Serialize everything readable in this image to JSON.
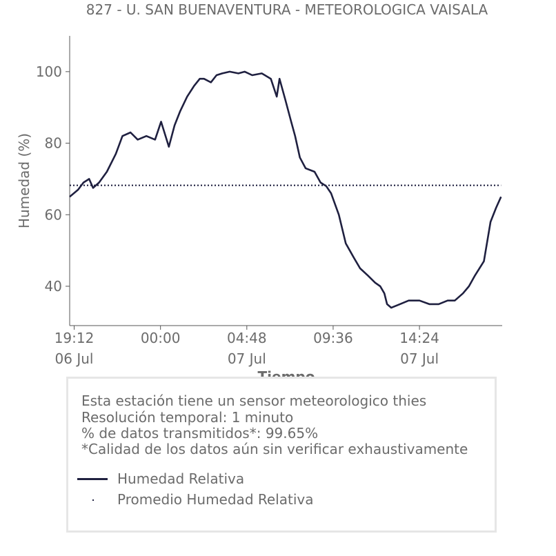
{
  "colors": {
    "series": "#1f2040",
    "text": "#6b6b6b",
    "axis": "#555555",
    "legend_border": "#e6e6e6"
  },
  "chart_data": {
    "type": "line",
    "title": "827 - U. SAN BUENAVENTURA - METEOROLOGICA VAISALA",
    "xlabel": "Tiempo",
    "ylabel": "Humedad (%)",
    "ylim": [
      29,
      110
    ],
    "yticks": [
      40,
      60,
      80,
      100
    ],
    "xlim": [
      "2024-07-06T18:57",
      "2024-07-07T19:00"
    ],
    "xticks": [
      {
        "t": "2024-07-06T19:12",
        "time": "19:12",
        "date": "06 Jul"
      },
      {
        "t": "2024-07-07T00:00",
        "time": "00:00",
        "date": ""
      },
      {
        "t": "2024-07-07T04:48",
        "time": "04:48",
        "date": "07 Jul"
      },
      {
        "t": "2024-07-07T09:36",
        "time": "09:36",
        "date": ""
      },
      {
        "t": "2024-07-07T14:24",
        "time": "14:24",
        "date": "07 Jul"
      }
    ],
    "grid": false,
    "legend_position": "below",
    "series": [
      {
        "name": "Humedad Relativa",
        "style": "solid",
        "x": [
          "2024-07-06T18:57",
          "2024-07-06T19:25",
          "2024-07-06T19:43",
          "2024-07-06T20:02",
          "2024-07-06T20:15",
          "2024-07-06T20:35",
          "2024-07-06T21:01",
          "2024-07-06T21:31",
          "2024-07-06T21:53",
          "2024-07-06T22:20",
          "2024-07-06T22:44",
          "2024-07-06T23:13",
          "2024-07-06T23:42",
          "2024-07-07T00:02",
          "2024-07-07T00:28",
          "2024-07-07T00:47",
          "2024-07-07T01:06",
          "2024-07-07T01:29",
          "2024-07-07T01:52",
          "2024-07-07T02:11",
          "2024-07-07T02:25",
          "2024-07-07T02:48",
          "2024-07-07T03:07",
          "2024-07-07T03:26",
          "2024-07-07T03:51",
          "2024-07-07T04:20",
          "2024-07-07T04:41",
          "2024-07-07T05:06",
          "2024-07-07T05:38",
          "2024-07-07T06:08",
          "2024-07-07T06:28",
          "2024-07-07T06:37",
          "2024-07-07T06:57",
          "2024-07-07T07:16",
          "2024-07-07T07:29",
          "2024-07-07T07:45",
          "2024-07-07T08:04",
          "2024-07-07T08:34",
          "2024-07-07T08:54",
          "2024-07-07T09:13",
          "2024-07-07T09:29",
          "2024-07-07T09:55",
          "2024-07-07T10:18",
          "2024-07-07T10:45",
          "2024-07-07T11:06",
          "2024-07-07T11:32",
          "2024-07-07T11:56",
          "2024-07-07T12:13",
          "2024-07-07T12:27",
          "2024-07-07T12:36",
          "2024-07-07T12:50",
          "2024-07-07T13:19",
          "2024-07-07T13:48",
          "2024-07-07T14:24",
          "2024-07-07T14:57",
          "2024-07-07T15:28",
          "2024-07-07T15:58",
          "2024-07-07T16:22",
          "2024-07-07T16:49",
          "2024-07-07T17:09",
          "2024-07-07T17:29",
          "2024-07-07T17:59",
          "2024-07-07T18:21",
          "2024-07-07T18:40",
          "2024-07-07T18:56"
        ],
        "values": [
          65,
          67,
          69,
          70,
          67.5,
          69,
          72,
          77,
          82,
          83,
          81,
          82,
          81,
          86,
          79,
          85,
          89,
          93,
          96,
          98,
          98,
          97,
          99,
          99.5,
          100,
          99.5,
          100,
          99,
          99.5,
          98,
          93,
          98,
          92,
          86,
          82,
          76,
          73,
          72,
          69,
          68,
          66,
          60,
          52,
          48,
          45,
          43,
          41,
          40,
          38,
          35,
          34,
          35,
          36,
          36,
          35,
          35,
          36,
          36,
          38,
          40,
          43,
          47,
          58,
          62,
          65
        ]
      },
      {
        "name": "Promedio Humedad Relativa",
        "style": "dotted",
        "x": [
          "2024-07-06T18:57",
          "2024-07-07T18:56"
        ],
        "values": [
          68.2,
          68.2
        ]
      }
    ]
  },
  "info": {
    "line1": "Esta estación tiene un sensor meteorologico thies",
    "line2": "Resolución temporal: 1 minuto",
    "line3": "% de datos transmitidos*: 99.65%",
    "line4": "*Calidad de los datos aún sin verificar exhaustivamente"
  },
  "legend": {
    "line_label": "Humedad Relativa",
    "mean_label": "Promedio Humedad Relativa"
  }
}
